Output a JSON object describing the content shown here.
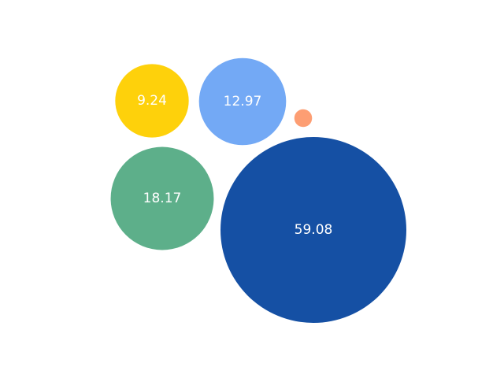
{
  "chart_data": {
    "type": "bubble",
    "title": "",
    "legend": false,
    "grid": false,
    "axes_visible": false,
    "bubbles": [
      {
        "value": 59.08,
        "label": "59.08",
        "color": "#1550a4",
        "label_visible": true
      },
      {
        "value": 18.17,
        "label": "18.17",
        "color": "#5daf8a",
        "label_visible": true
      },
      {
        "value": 12.97,
        "label": "12.97",
        "color": "#73a9f5",
        "label_visible": true
      },
      {
        "value": 9.24,
        "label": "9.24",
        "color": "#fed10b",
        "label_visible": true
      },
      {
        "value": 0.54,
        "label": "0.54",
        "color": "#fd9e73",
        "label_visible": false
      }
    ]
  }
}
